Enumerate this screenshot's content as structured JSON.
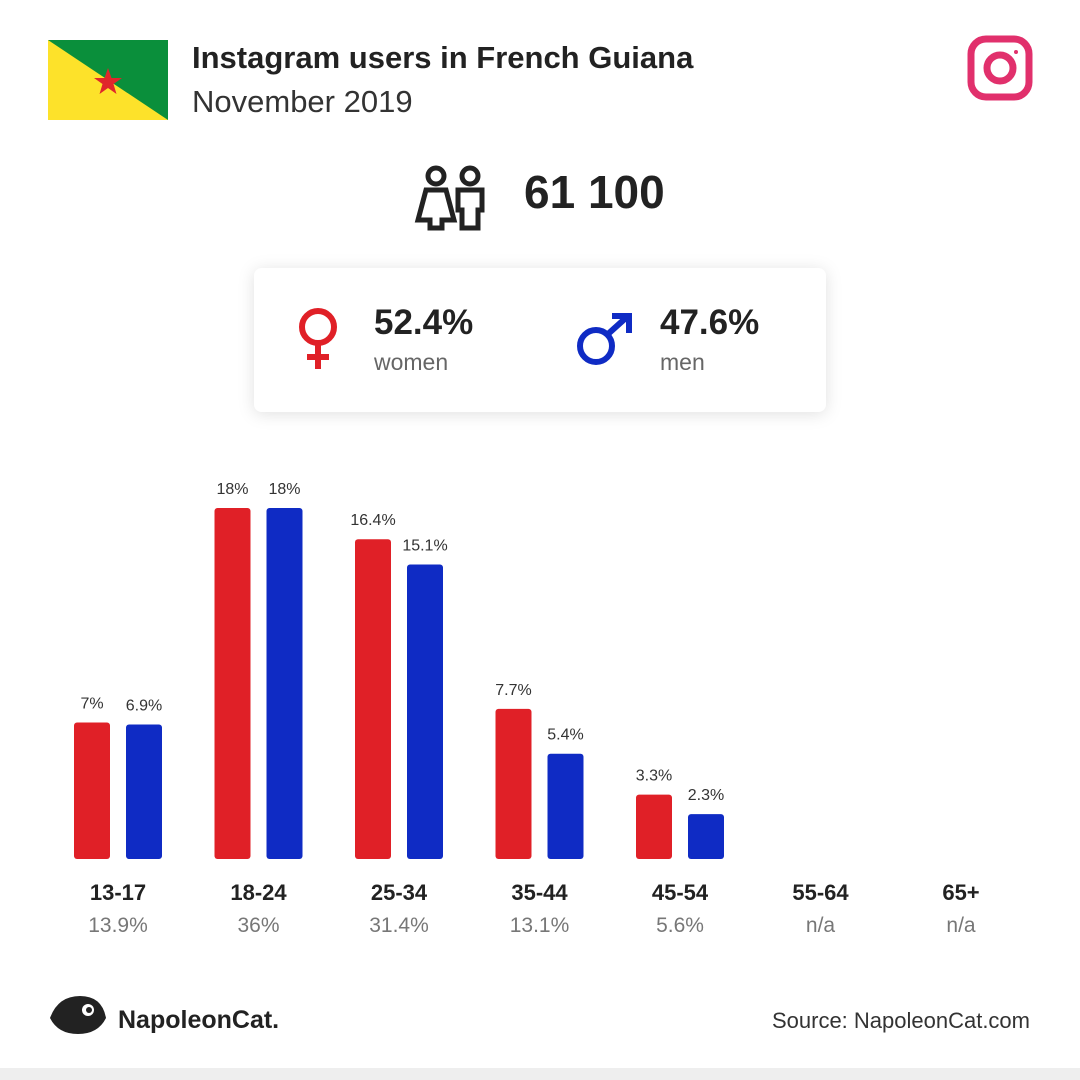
{
  "header": {
    "title": "Instagram users in French Guiana",
    "subtitle": "November 2019"
  },
  "total_users": "61 100",
  "gender": {
    "women_share": "52.4%",
    "women_label": "women",
    "men_share": "47.6%",
    "men_label": "men"
  },
  "chart_data": {
    "type": "bar",
    "categories": [
      "13-17",
      "18-24",
      "25-34",
      "35-44",
      "45-54",
      "55-64",
      "65+"
    ],
    "category_totals": [
      "13.9%",
      "36%",
      "31.4%",
      "13.1%",
      "5.6%",
      "n/a",
      "n/a"
    ],
    "series": [
      {
        "color": "#e02027",
        "values": [
          7,
          18,
          16.4,
          7.7,
          3.3,
          null,
          null
        ],
        "value_labels": [
          "7%",
          "18%",
          "16.4%",
          "7.7%",
          "3.3%",
          null,
          null
        ]
      },
      {
        "color": "#0f2bc4",
        "values": [
          6.9,
          18,
          15.1,
          5.4,
          2.3,
          null,
          null
        ],
        "value_labels": [
          "6.9%",
          "18%",
          "15.1%",
          "5.4%",
          "2.3%",
          null,
          null
        ]
      }
    ]
  },
  "footer": {
    "brand": "NapoleonCat.",
    "source": "Source: NapoleonCat.com"
  }
}
